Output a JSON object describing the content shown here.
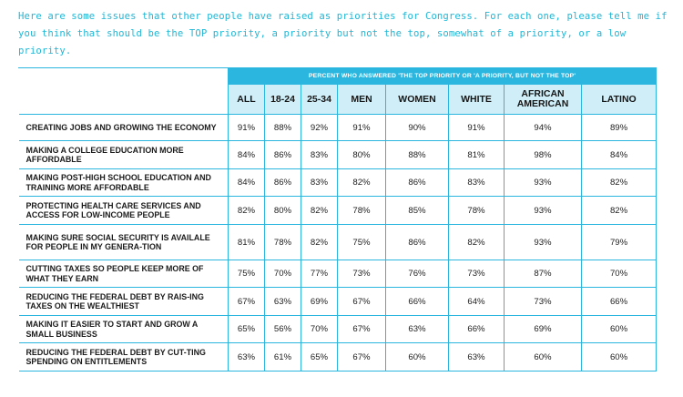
{
  "intro": "Here are some issues that other people have raised as priorities for Congress. For each one, please tell me if you think that should be the TOP priority, a priority but not the top, somewhat of a priority, or a low priority.",
  "banner": "PERCENT WHO ANSWERED 'THE TOP PRIORITY OR 'A PRIORITY, BUT NOT THE TOP'",
  "columns": [
    "ALL",
    "18-24",
    "25-34",
    "MEN",
    "WOMEN",
    "WHITE",
    "AFRICAN AMERICAN",
    "LATINO"
  ],
  "rows": [
    {
      "label": "CREATING JOBS AND GROWING THE ECONOMY",
      "values": [
        "91%",
        "88%",
        "92%",
        "91%",
        "90%",
        "91%",
        "94%",
        "89%"
      ]
    },
    {
      "label": "MAKING A COLLEGE EDUCATION MORE AFFORDABLE",
      "values": [
        "84%",
        "86%",
        "83%",
        "80%",
        "88%",
        "81%",
        "98%",
        "84%"
      ]
    },
    {
      "label": "MAKING POST-HIGH SCHOOL EDUCATION AND TRAINING MORE AFFORDABLE",
      "values": [
        "84%",
        "86%",
        "83%",
        "82%",
        "86%",
        "83%",
        "93%",
        "82%"
      ]
    },
    {
      "label": "PROTECTING HEALTH CARE SERVICES AND ACCESS FOR LOW-INCOME PEOPLE",
      "values": [
        "82%",
        "80%",
        "82%",
        "78%",
        "85%",
        "78%",
        "93%",
        "82%"
      ]
    },
    {
      "label": "MAKING SURE SOCIAL SECURITY IS AVAILALE FOR PEOPLE IN MY GENERA-TION",
      "values": [
        "81%",
        "78%",
        "82%",
        "75%",
        "86%",
        "82%",
        "93%",
        "79%"
      ]
    },
    {
      "label": "CUTTING TAXES SO PEOPLE KEEP MORE OF WHAT THEY EARN",
      "values": [
        "75%",
        "70%",
        "77%",
        "73%",
        "76%",
        "73%",
        "87%",
        "70%"
      ]
    },
    {
      "label": "REDUCING THE FEDERAL DEBT BY RAIS-ING TAXES ON THE WEALTHIEST",
      "values": [
        "67%",
        "63%",
        "69%",
        "67%",
        "66%",
        "64%",
        "73%",
        "66%"
      ]
    },
    {
      "label": "MAKING IT EASIER TO START AND GROW A SMALL BUSINESS",
      "values": [
        "65%",
        "56%",
        "70%",
        "67%",
        "63%",
        "66%",
        "69%",
        "60%"
      ]
    },
    {
      "label": "REDUCING THE FEDERAL DEBT BY CUT-TING SPENDING ON ENTITLEMENTS",
      "values": [
        "63%",
        "61%",
        "65%",
        "67%",
        "60%",
        "63%",
        "60%",
        "60%"
      ]
    }
  ],
  "colors": {
    "accent": "#2bb6e0",
    "header_fill": "#cfeef8",
    "intro_text": "#1fb7d6"
  }
}
